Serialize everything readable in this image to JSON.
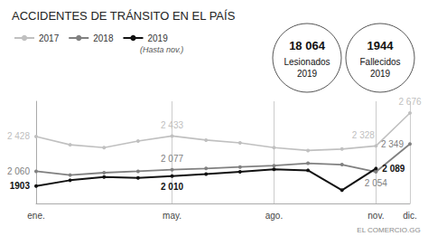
{
  "chart_data": {
    "type": "line",
    "title": "ACCIDENTES DE TRÁNSITO EN EL PAÍS",
    "subtitle": "(Hasta nov.)",
    "categories": [
      "ene.",
      null,
      null,
      null,
      "may.",
      null,
      null,
      "ago.",
      null,
      null,
      "nov.",
      "dic."
    ],
    "series": [
      {
        "name": "2017",
        "color": "#c0c0c0",
        "values": [
          2428,
          2340,
          2310,
          2380,
          2433,
          2390,
          2360,
          2310,
          2280,
          2295,
          2328,
          2676
        ],
        "value_labels": [
          "2 428",
          null,
          null,
          null,
          "2 433",
          null,
          null,
          null,
          null,
          null,
          "2 328",
          "2 676"
        ]
      },
      {
        "name": "2018",
        "color": "#808080",
        "values": [
          2060,
          2020,
          2045,
          2060,
          2077,
          2090,
          2105,
          2120,
          2145,
          2130,
          2054,
          2349
        ],
        "value_labels": [
          "2 060",
          null,
          null,
          null,
          "2 077",
          null,
          null,
          null,
          null,
          null,
          "2 054",
          "2 349"
        ]
      },
      {
        "name": "2019",
        "color": "#111111",
        "values": [
          1903,
          1965,
          2000,
          1990,
          2010,
          2030,
          2055,
          2080,
          2070,
          1860,
          2089,
          null
        ],
        "value_labels": [
          "1903",
          null,
          null,
          null,
          "2 010",
          null,
          null,
          null,
          null,
          null,
          "2 089",
          null
        ]
      }
    ],
    "ylim": [
      1720,
      2800
    ],
    "grid": true,
    "legend": "top left",
    "tick_labels": "x",
    "data_labels": true,
    "marker": "circle",
    "annotations": [
      {
        "title": "18 064",
        "text": [
          "Lesionados",
          "2019"
        ]
      },
      {
        "title": "1944",
        "text": [
          "Fallecidos",
          "2019"
        ]
      }
    ],
    "source": "EL COMERCIO.GG"
  }
}
